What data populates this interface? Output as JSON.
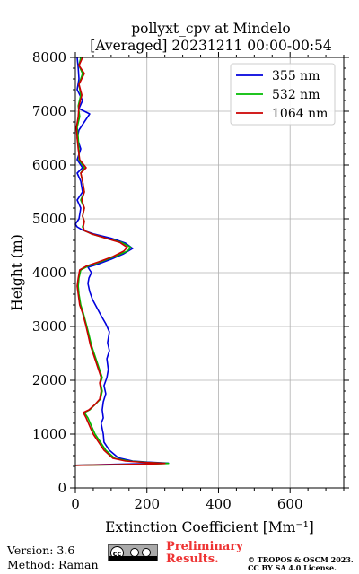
{
  "chart_data": {
    "type": "line",
    "title": [
      "pollyxt_cpv at Mindelo",
      "[Averaged] 20231211 00:00-00:54"
    ],
    "xlabel": "Extinction Coefficient [Mm⁻¹]",
    "ylabel": "Height (m)",
    "xlim": [
      0,
      750
    ],
    "ylim": [
      0,
      8000
    ],
    "xticks": [
      0,
      200,
      400,
      600
    ],
    "yticks": [
      0,
      1000,
      2000,
      3000,
      4000,
      5000,
      6000,
      7000,
      8000
    ],
    "grid": true,
    "legend_position": "top-right",
    "series": [
      {
        "name": "355 nm",
        "color": "#0000dd",
        "points": [
          [
            0,
            420
          ],
          [
            180,
            450
          ],
          [
            260,
            460
          ],
          [
            200,
            480
          ],
          [
            160,
            500
          ],
          [
            120,
            560
          ],
          [
            95,
            700
          ],
          [
            80,
            850
          ],
          [
            78,
            1000
          ],
          [
            75,
            1100
          ],
          [
            72,
            1200
          ],
          [
            78,
            1300
          ],
          [
            75,
            1450
          ],
          [
            78,
            1600
          ],
          [
            85,
            1750
          ],
          [
            80,
            1900
          ],
          [
            88,
            2050
          ],
          [
            92,
            2200
          ],
          [
            88,
            2400
          ],
          [
            95,
            2550
          ],
          [
            90,
            2700
          ],
          [
            95,
            2900
          ],
          [
            85,
            3050
          ],
          [
            72,
            3200
          ],
          [
            60,
            3350
          ],
          [
            48,
            3500
          ],
          [
            40,
            3650
          ],
          [
            35,
            3800
          ],
          [
            38,
            3900
          ],
          [
            45,
            4000
          ],
          [
            35,
            4100
          ],
          [
            60,
            4150
          ],
          [
            100,
            4250
          ],
          [
            135,
            4350
          ],
          [
            160,
            4450
          ],
          [
            140,
            4550
          ],
          [
            100,
            4640
          ],
          [
            50,
            4720
          ],
          [
            20,
            4790
          ],
          [
            5,
            4850
          ],
          [
            0,
            4900
          ],
          [
            10,
            5000
          ],
          [
            15,
            5200
          ],
          [
            5,
            5350
          ],
          [
            20,
            5500
          ],
          [
            15,
            5700
          ],
          [
            5,
            5850
          ],
          [
            20,
            5950
          ],
          [
            5,
            6100
          ],
          [
            15,
            6300
          ],
          [
            5,
            6500
          ],
          [
            10,
            6650
          ],
          [
            40,
            6950
          ],
          [
            10,
            7050
          ],
          [
            20,
            7200
          ],
          [
            5,
            7400
          ],
          [
            10,
            7600
          ],
          [
            8,
            7800
          ],
          [
            5,
            8000
          ]
        ]
      },
      {
        "name": "532 nm",
        "color": "#00bb00",
        "points": [
          [
            0,
            420
          ],
          [
            200,
            440
          ],
          [
            260,
            455
          ],
          [
            200,
            475
          ],
          [
            150,
            500
          ],
          [
            110,
            550
          ],
          [
            85,
            700
          ],
          [
            70,
            850
          ],
          [
            55,
            1000
          ],
          [
            45,
            1150
          ],
          [
            35,
            1300
          ],
          [
            25,
            1400
          ],
          [
            40,
            1450
          ],
          [
            55,
            1550
          ],
          [
            70,
            1650
          ],
          [
            75,
            1800
          ],
          [
            70,
            1950
          ],
          [
            75,
            2050
          ],
          [
            65,
            2250
          ],
          [
            55,
            2450
          ],
          [
            45,
            2650
          ],
          [
            38,
            2850
          ],
          [
            30,
            3050
          ],
          [
            22,
            3250
          ],
          [
            15,
            3400
          ],
          [
            10,
            3600
          ],
          [
            8,
            3750
          ],
          [
            10,
            3900
          ],
          [
            15,
            4050
          ],
          [
            35,
            4120
          ],
          [
            70,
            4200
          ],
          [
            110,
            4300
          ],
          [
            145,
            4400
          ],
          [
            155,
            4470
          ],
          [
            130,
            4560
          ],
          [
            80,
            4650
          ],
          [
            45,
            4720
          ],
          [
            25,
            4780
          ],
          [
            20,
            4850
          ],
          [
            25,
            4950
          ],
          [
            20,
            5050
          ],
          [
            25,
            5200
          ],
          [
            15,
            5350
          ],
          [
            25,
            5500
          ],
          [
            20,
            5700
          ],
          [
            15,
            5850
          ],
          [
            25,
            5950
          ],
          [
            10,
            6100
          ],
          [
            10,
            6300
          ],
          [
            8,
            6500
          ],
          [
            5,
            6700
          ],
          [
            12,
            6900
          ],
          [
            8,
            7100
          ],
          [
            15,
            7300
          ],
          [
            10,
            7500
          ],
          [
            20,
            7700
          ],
          [
            10,
            7850
          ],
          [
            15,
            8000
          ]
        ]
      },
      {
        "name": "1064 nm",
        "color": "#cc0000",
        "points": [
          [
            0,
            420
          ],
          [
            190,
            440
          ],
          [
            250,
            455
          ],
          [
            190,
            475
          ],
          [
            140,
            500
          ],
          [
            105,
            550
          ],
          [
            80,
            700
          ],
          [
            65,
            850
          ],
          [
            50,
            1000
          ],
          [
            40,
            1150
          ],
          [
            30,
            1300
          ],
          [
            22,
            1400
          ],
          [
            38,
            1450
          ],
          [
            55,
            1550
          ],
          [
            68,
            1650
          ],
          [
            72,
            1800
          ],
          [
            68,
            1950
          ],
          [
            72,
            2050
          ],
          [
            62,
            2250
          ],
          [
            52,
            2450
          ],
          [
            42,
            2650
          ],
          [
            35,
            2850
          ],
          [
            28,
            3050
          ],
          [
            20,
            3250
          ],
          [
            12,
            3400
          ],
          [
            8,
            3600
          ],
          [
            5,
            3750
          ],
          [
            8,
            3900
          ],
          [
            12,
            4050
          ],
          [
            30,
            4120
          ],
          [
            65,
            4200
          ],
          [
            105,
            4300
          ],
          [
            135,
            4400
          ],
          [
            145,
            4470
          ],
          [
            125,
            4560
          ],
          [
            80,
            4650
          ],
          [
            45,
            4720
          ],
          [
            25,
            4780
          ],
          [
            22,
            4850
          ],
          [
            25,
            4950
          ],
          [
            20,
            5050
          ],
          [
            25,
            5200
          ],
          [
            18,
            5350
          ],
          [
            25,
            5500
          ],
          [
            20,
            5700
          ],
          [
            15,
            5850
          ],
          [
            30,
            5950
          ],
          [
            12,
            6100
          ],
          [
            8,
            6300
          ],
          [
            5,
            6500
          ],
          [
            3,
            6700
          ],
          [
            8,
            6900
          ],
          [
            10,
            7100
          ],
          [
            18,
            7300
          ],
          [
            10,
            7500
          ],
          [
            25,
            7700
          ],
          [
            10,
            7850
          ],
          [
            20,
            8000
          ]
        ]
      }
    ]
  },
  "footer": {
    "version": "Version: 3.6",
    "method": "Method: Raman",
    "cc_badge": "cc",
    "preliminary": [
      "Preliminary",
      "Results."
    ],
    "copyright": [
      "© TROPOS & OSCM 2023.",
      "CC BY SA 4.0 License."
    ]
  }
}
